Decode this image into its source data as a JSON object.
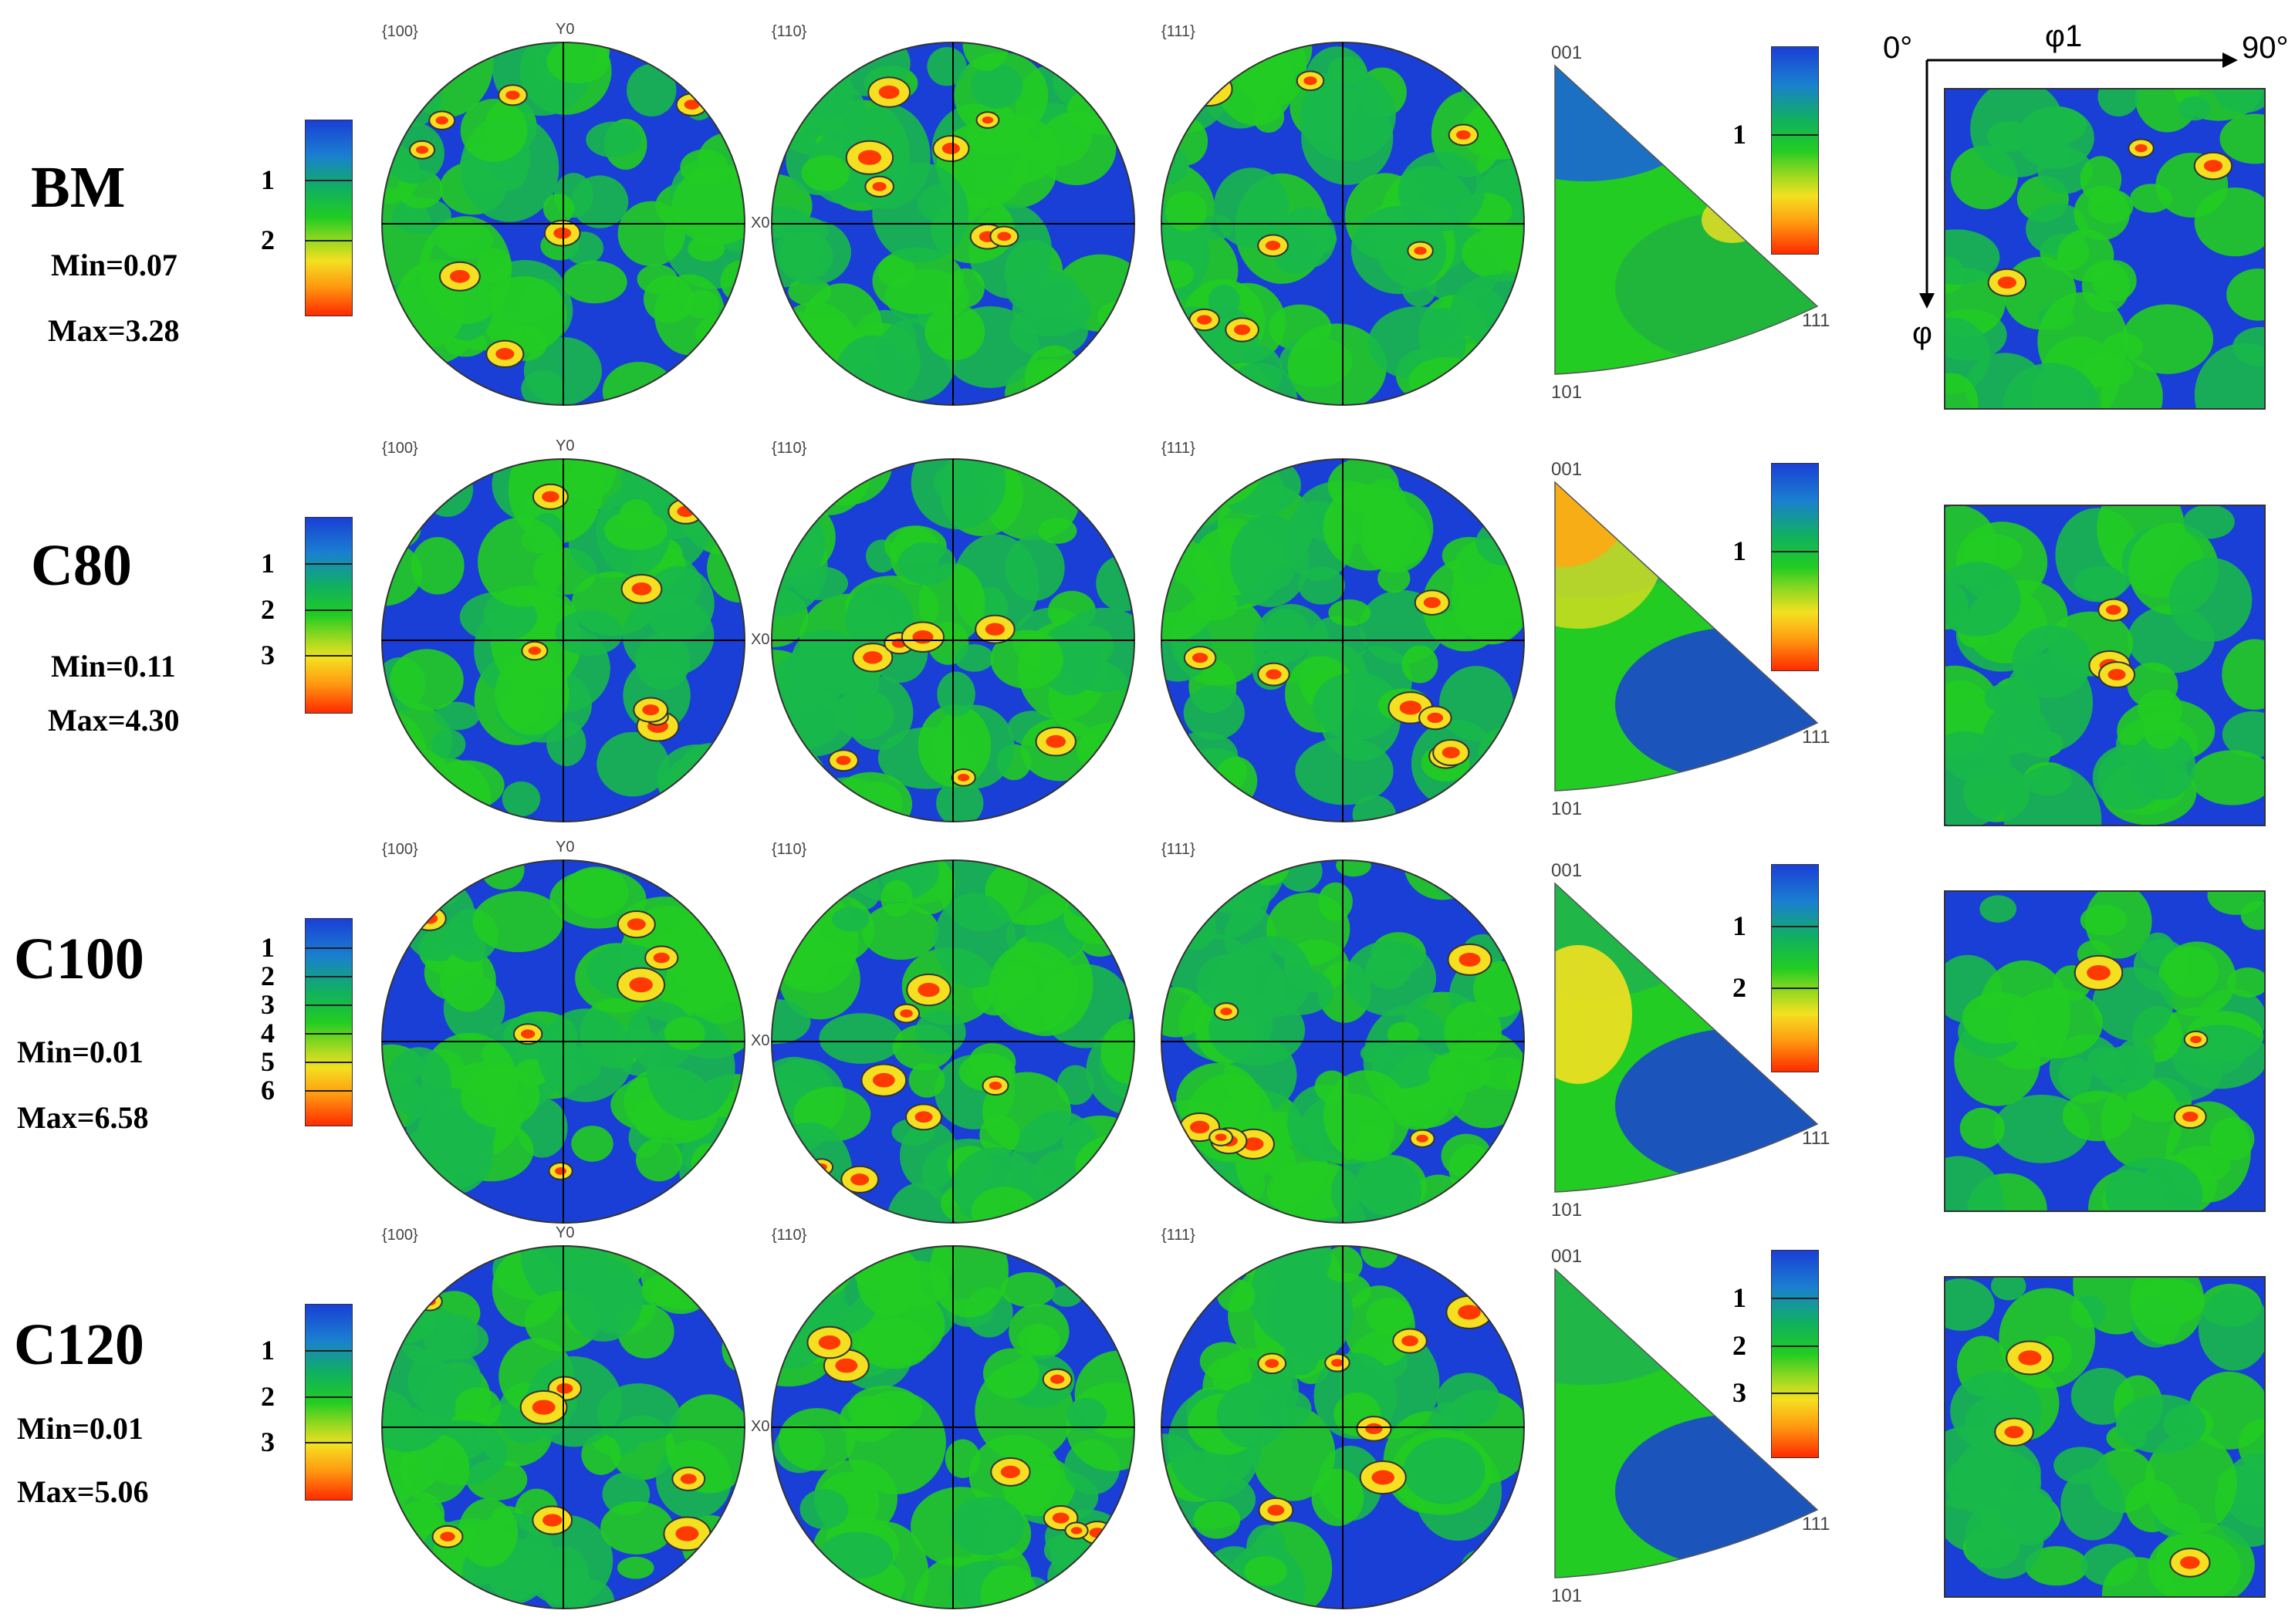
{
  "rows": [
    {
      "name": "BM",
      "min": "Min=0.07",
      "max": "Max=3.28",
      "legend": [
        "1",
        "2"
      ],
      "ipf_legend": [
        "1"
      ]
    },
    {
      "name": "C80",
      "min": "Min=0.11",
      "max": "Max=4.30",
      "legend": [
        "1",
        "2",
        "3"
      ],
      "ipf_legend": [
        "1"
      ]
    },
    {
      "name": "C100",
      "min": "Min=0.01",
      "max": "Max=6.58",
      "legend": [
        "1",
        "2",
        "3",
        "4",
        "5",
        "6"
      ],
      "ipf_legend": [
        "1",
        "2"
      ]
    },
    {
      "name": "C120",
      "min": "Min=0.01",
      "max": "Max=5.06",
      "legend": [
        "1",
        "2",
        "3"
      ],
      "ipf_legend": [
        "1",
        "2",
        "3"
      ]
    }
  ],
  "pole_figures": [
    "{100}",
    "{110}",
    "{111}"
  ],
  "axis_labels": {
    "y": "Y0",
    "x": "X0"
  },
  "ipf_corners": {
    "top": "001",
    "left": "101",
    "right": "111"
  },
  "odf_axes": {
    "start": "0°",
    "end": "90°",
    "phi1": "φ1",
    "phi": "φ"
  },
  "colors": {
    "low": "#1a3fd6",
    "mid": "#22cc22",
    "high": "#ff2a00"
  }
}
